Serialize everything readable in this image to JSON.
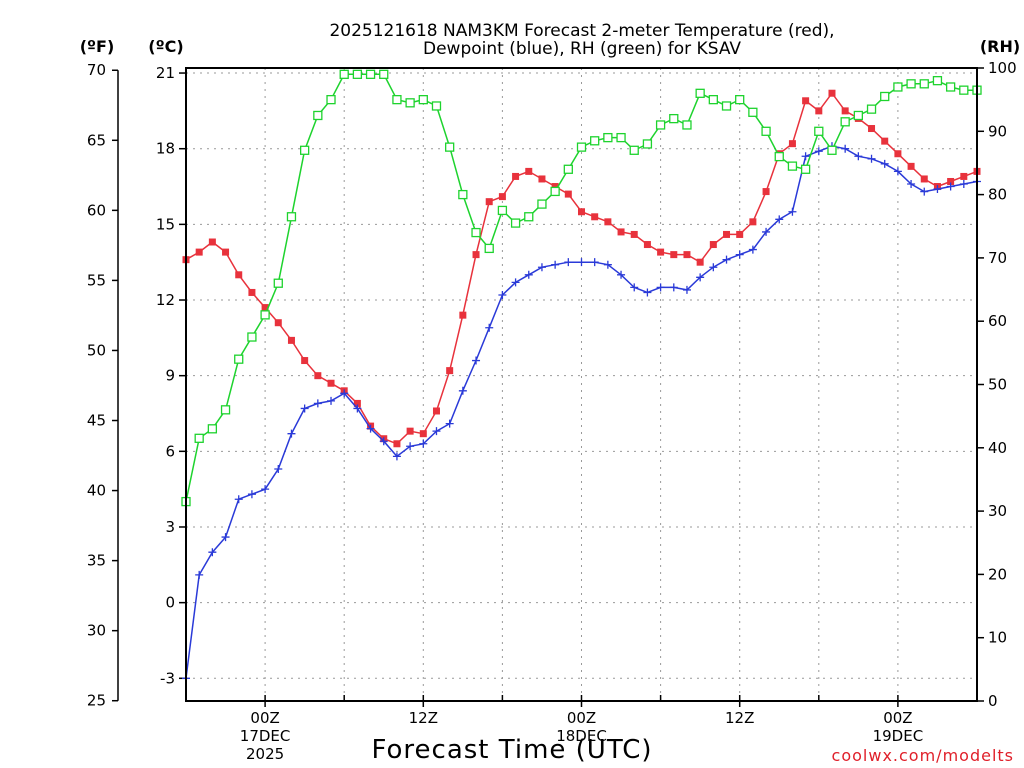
{
  "chart_data": {
    "type": "line",
    "title_line1": "2025121618 NAM3KM Forecast 2-meter Temperature (red),",
    "title_line2": "Dewpoint (blue), RH (green) for KSAV",
    "xlabel": "Forecast Time (UTC)",
    "credit": "coolwx.com/modelts",
    "units": {
      "f": "(ºF)",
      "c": "(ºC)",
      "rh": "(RH)"
    },
    "x_range_hours": [
      18,
      78
    ],
    "ylim_c": [
      -3.9,
      21.2
    ],
    "ylim_rh": [
      0,
      100
    ],
    "x_ticks": [
      {
        "hour": 24,
        "line1": "00Z",
        "line2": "17DEC",
        "line3": "2025"
      },
      {
        "hour": 36,
        "line1": "12Z",
        "line2": "",
        "line3": ""
      },
      {
        "hour": 48,
        "line1": "00Z",
        "line2": "18DEC",
        "line3": ""
      },
      {
        "hour": 60,
        "line1": "12Z",
        "line2": "",
        "line3": ""
      },
      {
        "hour": 72,
        "line1": "00Z",
        "line2": "19DEC",
        "line3": ""
      }
    ],
    "y_ticks_f": [
      "25",
      "30",
      "35",
      "40",
      "45",
      "50",
      "55",
      "60",
      "65",
      "70"
    ],
    "y_ticks_f_values": [
      25,
      30,
      35,
      40,
      45,
      50,
      55,
      60,
      65,
      70
    ],
    "y_ticks_c": [
      "-3",
      "0",
      "3",
      "6",
      "9",
      "12",
      "15",
      "18",
      "21"
    ],
    "y_ticks_c_values": [
      -3,
      0,
      3,
      6,
      9,
      12,
      15,
      18,
      21
    ],
    "y_ticks_rh": [
      "0",
      "10",
      "20",
      "30",
      "40",
      "50",
      "60",
      "70",
      "80",
      "90",
      "100"
    ],
    "y_ticks_rh_values": [
      0,
      10,
      20,
      30,
      40,
      50,
      60,
      70,
      80,
      90,
      100
    ],
    "series": [
      {
        "name": "Temperature",
        "unit": "C",
        "color": "#e8323c",
        "marker": "filled-square",
        "x": [
          18,
          19,
          20,
          21,
          22,
          23,
          24,
          25,
          26,
          27,
          28,
          29,
          30,
          31,
          32,
          33,
          34,
          35,
          36,
          37,
          38,
          39,
          40,
          41,
          42,
          43,
          44,
          45,
          46,
          47,
          48,
          49,
          50,
          51,
          52,
          53,
          54,
          55,
          56,
          57,
          58,
          59,
          60,
          61,
          62,
          63,
          64,
          65,
          66,
          67,
          68,
          69,
          70,
          71,
          72,
          73,
          74,
          75,
          76,
          77,
          78
        ],
        "values": [
          13.6,
          13.9,
          14.3,
          13.9,
          13.0,
          12.3,
          11.7,
          11.1,
          10.4,
          9.6,
          9.0,
          8.7,
          8.4,
          7.9,
          7.0,
          6.5,
          6.3,
          6.8,
          6.7,
          7.6,
          9.2,
          11.4,
          13.8,
          15.9,
          16.1,
          16.9,
          17.1,
          16.8,
          16.5,
          16.2,
          15.5,
          15.3,
          15.1,
          14.7,
          14.6,
          14.2,
          13.9,
          13.8,
          13.8,
          13.5,
          14.2,
          14.6,
          14.6,
          15.1,
          16.3,
          17.8,
          18.2,
          19.9,
          19.5,
          20.2,
          19.5,
          19.2,
          18.8,
          18.3,
          17.8,
          17.3,
          16.8,
          16.5,
          16.7,
          16.9,
          17.1
        ]
      },
      {
        "name": "Dewpoint",
        "unit": "C",
        "color": "#2a3ad8",
        "marker": "plus",
        "x": [
          18,
          19,
          20,
          21,
          22,
          23,
          24,
          25,
          26,
          27,
          28,
          29,
          30,
          31,
          32,
          33,
          34,
          35,
          36,
          37,
          38,
          39,
          40,
          41,
          42,
          43,
          44,
          45,
          46,
          47,
          48,
          49,
          50,
          51,
          52,
          53,
          54,
          55,
          56,
          57,
          58,
          59,
          60,
          61,
          62,
          63,
          64,
          65,
          66,
          67,
          68,
          69,
          70,
          71,
          72,
          73,
          74,
          75,
          76,
          77,
          78
        ],
        "values": [
          -3.0,
          1.1,
          2.0,
          2.6,
          4.1,
          4.3,
          4.5,
          5.3,
          6.7,
          7.7,
          7.9,
          8.0,
          8.3,
          7.7,
          6.9,
          6.4,
          5.8,
          6.2,
          6.3,
          6.8,
          7.1,
          8.4,
          9.6,
          10.9,
          12.2,
          12.7,
          13.0,
          13.3,
          13.4,
          13.5,
          13.5,
          13.5,
          13.4,
          13.0,
          12.5,
          12.3,
          12.5,
          12.5,
          12.4,
          12.9,
          13.3,
          13.6,
          13.8,
          14.0,
          14.7,
          15.2,
          15.5,
          17.7,
          17.9,
          18.1,
          18.0,
          17.7,
          17.6,
          17.4,
          17.1,
          16.6,
          16.3,
          16.4,
          16.5,
          16.6,
          16.7
        ]
      },
      {
        "name": "RH",
        "unit": "%",
        "color": "#1ed32e",
        "marker": "open-square",
        "x": [
          18,
          19,
          20,
          21,
          22,
          23,
          24,
          25,
          26,
          27,
          28,
          29,
          30,
          31,
          32,
          33,
          34,
          35,
          36,
          37,
          38,
          39,
          40,
          41,
          42,
          43,
          44,
          45,
          46,
          47,
          48,
          49,
          50,
          51,
          52,
          53,
          54,
          55,
          56,
          57,
          58,
          59,
          60,
          61,
          62,
          63,
          64,
          65,
          66,
          67,
          68,
          69,
          70,
          71,
          72,
          73,
          74,
          75,
          76,
          77,
          78
        ],
        "values": [
          31.5,
          41.5,
          43.0,
          46.0,
          54.0,
          57.5,
          61.0,
          66.0,
          76.5,
          87.0,
          92.5,
          95.0,
          99.0,
          99.0,
          99.0,
          99.0,
          95.0,
          94.5,
          95.0,
          94.0,
          87.5,
          80.0,
          74.0,
          71.5,
          77.5,
          75.5,
          76.5,
          78.5,
          80.5,
          84.0,
          87.5,
          88.5,
          89.0,
          89.0,
          87.0,
          88.0,
          91.0,
          92.0,
          91.0,
          96.0,
          95.0,
          94.0,
          95.0,
          93.0,
          90.0,
          86.0,
          84.5,
          84.0,
          90.0,
          87.0,
          91.5,
          92.5,
          93.5,
          95.5,
          97.0,
          97.5,
          97.5,
          98.0,
          97.0,
          96.5,
          96.5
        ]
      }
    ]
  }
}
